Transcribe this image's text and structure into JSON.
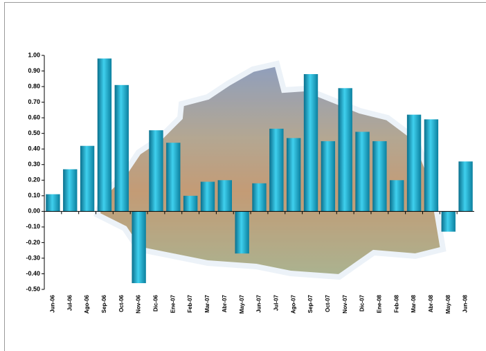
{
  "chart_data": {
    "type": "bar",
    "categories": [
      "Jun-06",
      "Jul-06",
      "Ago-06",
      "Sep-06",
      "Oct-06",
      "Nov-06",
      "Dic-06",
      "Ene-07",
      "Feb-07",
      "Mar-07",
      "Abr-07",
      "May-07",
      "Jun-07",
      "Jul-07",
      "Ago-07",
      "Sep-07",
      "Oct-07",
      "Nov-07",
      "Dic-07",
      "Ene-08",
      "Feb-08",
      "Mar-08",
      "Abr-08",
      "May-08",
      "Jun-08"
    ],
    "values": [
      0.11,
      0.27,
      0.42,
      0.98,
      0.81,
      -0.46,
      0.52,
      0.44,
      0.1,
      0.19,
      0.2,
      -0.27,
      0.18,
      0.53,
      0.47,
      0.88,
      0.45,
      0.79,
      0.51,
      0.45,
      0.2,
      0.62,
      0.59,
      -0.13,
      0.32
    ],
    "color": "#1aa7c8",
    "ylim": [
      -0.5,
      1.0
    ],
    "yticks": [
      {
        "value": -0.5,
        "label": "-0.50"
      },
      {
        "value": -0.4,
        "label": "-0.40"
      },
      {
        "value": -0.3,
        "label": "-0.30"
      },
      {
        "value": -0.2,
        "label": "-0.20"
      },
      {
        "value": -0.1,
        "label": "-0.10"
      },
      {
        "value": 0,
        "label": "0.00"
      },
      {
        "value": 0.1,
        "label": "0.10"
      },
      {
        "value": 0.2,
        "label": "0.20"
      },
      {
        "value": 0.3,
        "label": "0.30"
      },
      {
        "value": 0.4,
        "label": "0.40"
      },
      {
        "value": 0.5,
        "label": "0.50"
      },
      {
        "value": 0.6,
        "label": "0.60"
      },
      {
        "value": 0.7,
        "label": "0.70"
      },
      {
        "value": 0.8,
        "label": "0.80"
      },
      {
        "value": 0.9,
        "label": "0.90"
      },
      {
        "value": 1.0,
        "label": "1.00"
      }
    ]
  }
}
